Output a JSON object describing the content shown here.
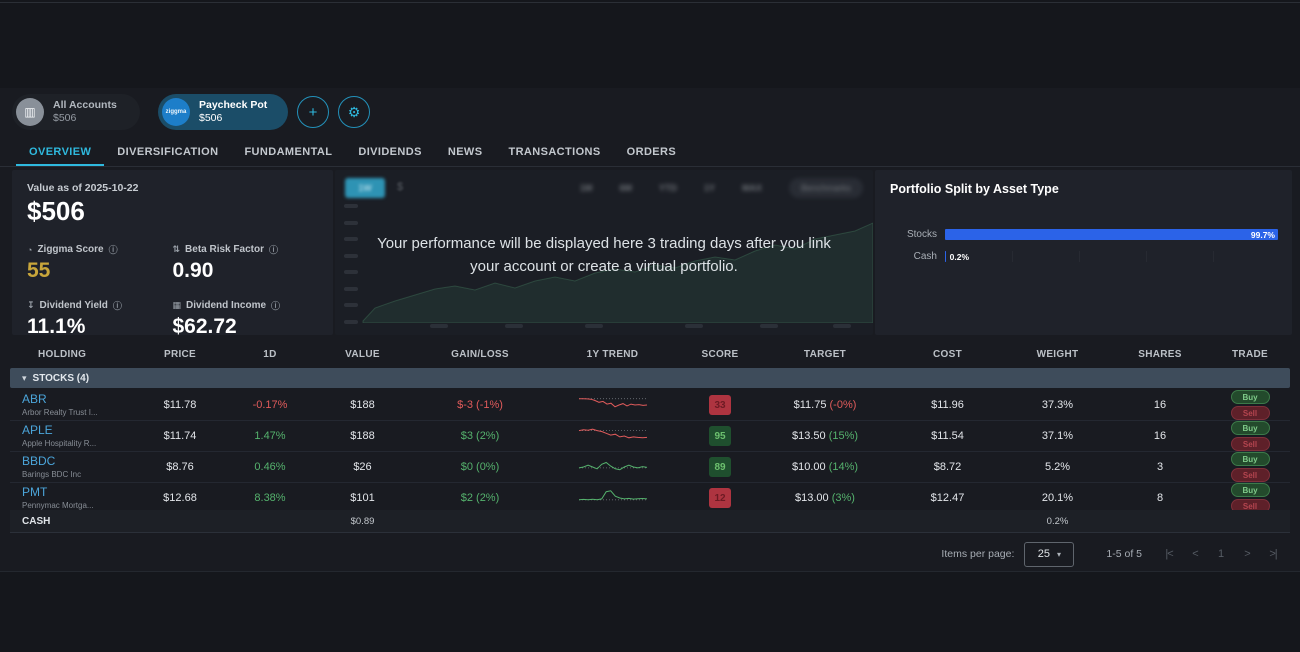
{
  "icons": {
    "bank-icon": "▥",
    "gauge-icon": "◔",
    "beta-icon": "⇅",
    "yield-icon": "↧",
    "calculator-icon": "▦",
    "info-icon": "ⓘ",
    "plus-icon": "+",
    "gear-icon": "⚙",
    "chevron-down-icon": "▾",
    "caret-down-icon": "▾",
    "dollar-icon": "$",
    "first-page-icon": "|<",
    "prev-page-icon": "<",
    "next-page-icon": ">",
    "last-page-icon": ">|"
  },
  "colors": {
    "accent_cyan": "#2fb9de",
    "link_blue": "#4ba5da",
    "negative_red": "#e05b5b",
    "positive_green": "#55b26d",
    "gold": "#c8a63b",
    "bar_blue": "#2b63e8"
  },
  "accounts": {
    "all": {
      "name": "All Accounts",
      "value": "$506"
    },
    "selected": {
      "name": "Paycheck Pot",
      "value": "$506"
    }
  },
  "tabs": [
    {
      "label": "OVERVIEW",
      "active": true
    },
    {
      "label": "DIVERSIFICATION",
      "active": false
    },
    {
      "label": "FUNDAMENTAL",
      "active": false
    },
    {
      "label": "DIVIDENDS",
      "active": false
    },
    {
      "label": "NEWS",
      "active": false
    },
    {
      "label": "TRANSACTIONS",
      "active": false
    },
    {
      "label": "ORDERS",
      "active": false
    }
  ],
  "stats": {
    "date_label": "Value as of 2025-10-22",
    "total_value": "$506",
    "items": [
      {
        "icon": "gauge-icon",
        "label": "Ziggma Score",
        "value": "55",
        "gold": true
      },
      {
        "icon": "beta-icon",
        "label": "Beta Risk Factor",
        "value": "0.90",
        "gold": false
      },
      {
        "icon": "yield-icon",
        "label": "Dividend Yield",
        "value": "11.1%",
        "gold": false
      },
      {
        "icon": "calculator-icon",
        "label": "Dividend Income",
        "value": "$62.72",
        "gold": false
      }
    ]
  },
  "performance": {
    "selected_period": "1W",
    "periods": [
      "1M",
      "6M",
      "YTD",
      "1Y",
      "MAX"
    ],
    "benchmarks_label": "Benchmarks",
    "message_line1": "Your performance will be displayed here 3 trading days after you link",
    "message_line2": "your account or create a virtual portfolio."
  },
  "chart_data": {
    "type": "bar",
    "orientation": "horizontal",
    "title": "Portfolio Split by Asset Type",
    "categories": [
      "Stocks",
      "Cash"
    ],
    "values": [
      99.7,
      0.2
    ],
    "value_labels": [
      "99.7%",
      "0.2%"
    ],
    "xlim": [
      0,
      100
    ],
    "bar_color": "#2b63e8",
    "legend": "none",
    "grid": "faint-vertical"
  },
  "table": {
    "headers": [
      "HOLDING",
      "PRICE",
      "1D",
      "VALUE",
      "GAIN/LOSS",
      "1Y TREND",
      "SCORE",
      "TARGET",
      "COST",
      "WEIGHT",
      "SHARES",
      "TRADE"
    ],
    "group_label": "STOCKS (4)",
    "trade": {
      "buy": "Buy",
      "sell": "Sell"
    },
    "rows": [
      {
        "ticker": "ABR",
        "name": "Arbor Realty Trust I...",
        "price": "$11.78",
        "day": "-0.17%",
        "day_dir": "neg",
        "value": "$188",
        "gain": "$-3 (-1%)",
        "gain_dir": "neg",
        "trend": {
          "color": "#e05b5b",
          "points": [
            15,
            15,
            16,
            18,
            25,
            35,
            30,
            45,
            40,
            60,
            50,
            42,
            55,
            45,
            50,
            48,
            52,
            50
          ]
        },
        "score": "33",
        "score_dir": "red",
        "target": "$11.75",
        "target_pct": "(-0%)",
        "target_dir": "neg",
        "cost": "$11.96",
        "weight": "37.3%",
        "shares": "16"
      },
      {
        "ticker": "APLE",
        "name": "Apple Hospitality R...",
        "price": "$11.74",
        "day": "1.47%",
        "day_dir": "pos",
        "value": "$188",
        "gain": "$3 (2%)",
        "gain_dir": "pos",
        "trend": {
          "color": "#e05b5b",
          "points": [
            20,
            15,
            18,
            12,
            20,
            25,
            35,
            45,
            40,
            55,
            50,
            60,
            55,
            58,
            60,
            58
          ]
        },
        "score": "95",
        "score_dir": "green",
        "target": "$13.50",
        "target_pct": "(15%)",
        "target_dir": "pos",
        "cost": "$11.54",
        "weight": "37.1%",
        "shares": "16"
      },
      {
        "ticker": "BBDC",
        "name": "Barings BDC Inc",
        "price": "$8.76",
        "day": "0.46%",
        "day_dir": "pos",
        "value": "$26",
        "gain": "$0 (0%)",
        "gain_dir": "pos",
        "trend": {
          "color": "#55b26d",
          "points": [
            55,
            50,
            40,
            50,
            60,
            35,
            25,
            45,
            60,
            65,
            50,
            40,
            50,
            55,
            48,
            52
          ]
        },
        "score": "89",
        "score_dir": "green",
        "target": "$10.00",
        "target_pct": "(14%)",
        "target_dir": "pos",
        "cost": "$8.72",
        "weight": "5.2%",
        "shares": "3"
      },
      {
        "ticker": "PMT",
        "name": "Pennymac Mortga...",
        "price": "$12.68",
        "day": "8.38%",
        "day_dir": "pos",
        "value": "$101",
        "gain": "$2 (2%)",
        "gain_dir": "pos",
        "trend": {
          "color": "#55b26d",
          "points": [
            60,
            58,
            60,
            57,
            60,
            55,
            15,
            10,
            40,
            50,
            55,
            52,
            56,
            54,
            53,
            55
          ]
        },
        "score": "12",
        "score_dir": "red",
        "target": "$13.00",
        "target_pct": "(3%)",
        "target_dir": "pos",
        "cost": "$12.47",
        "weight": "20.1%",
        "shares": "8"
      }
    ],
    "cash_row": {
      "label": "CASH",
      "value": "$0.89",
      "weight": "0.2%"
    }
  },
  "pagination": {
    "items_per_page_label": "Items per page:",
    "page_size": "25",
    "range": "1-5 of 5",
    "current_page": "1"
  }
}
